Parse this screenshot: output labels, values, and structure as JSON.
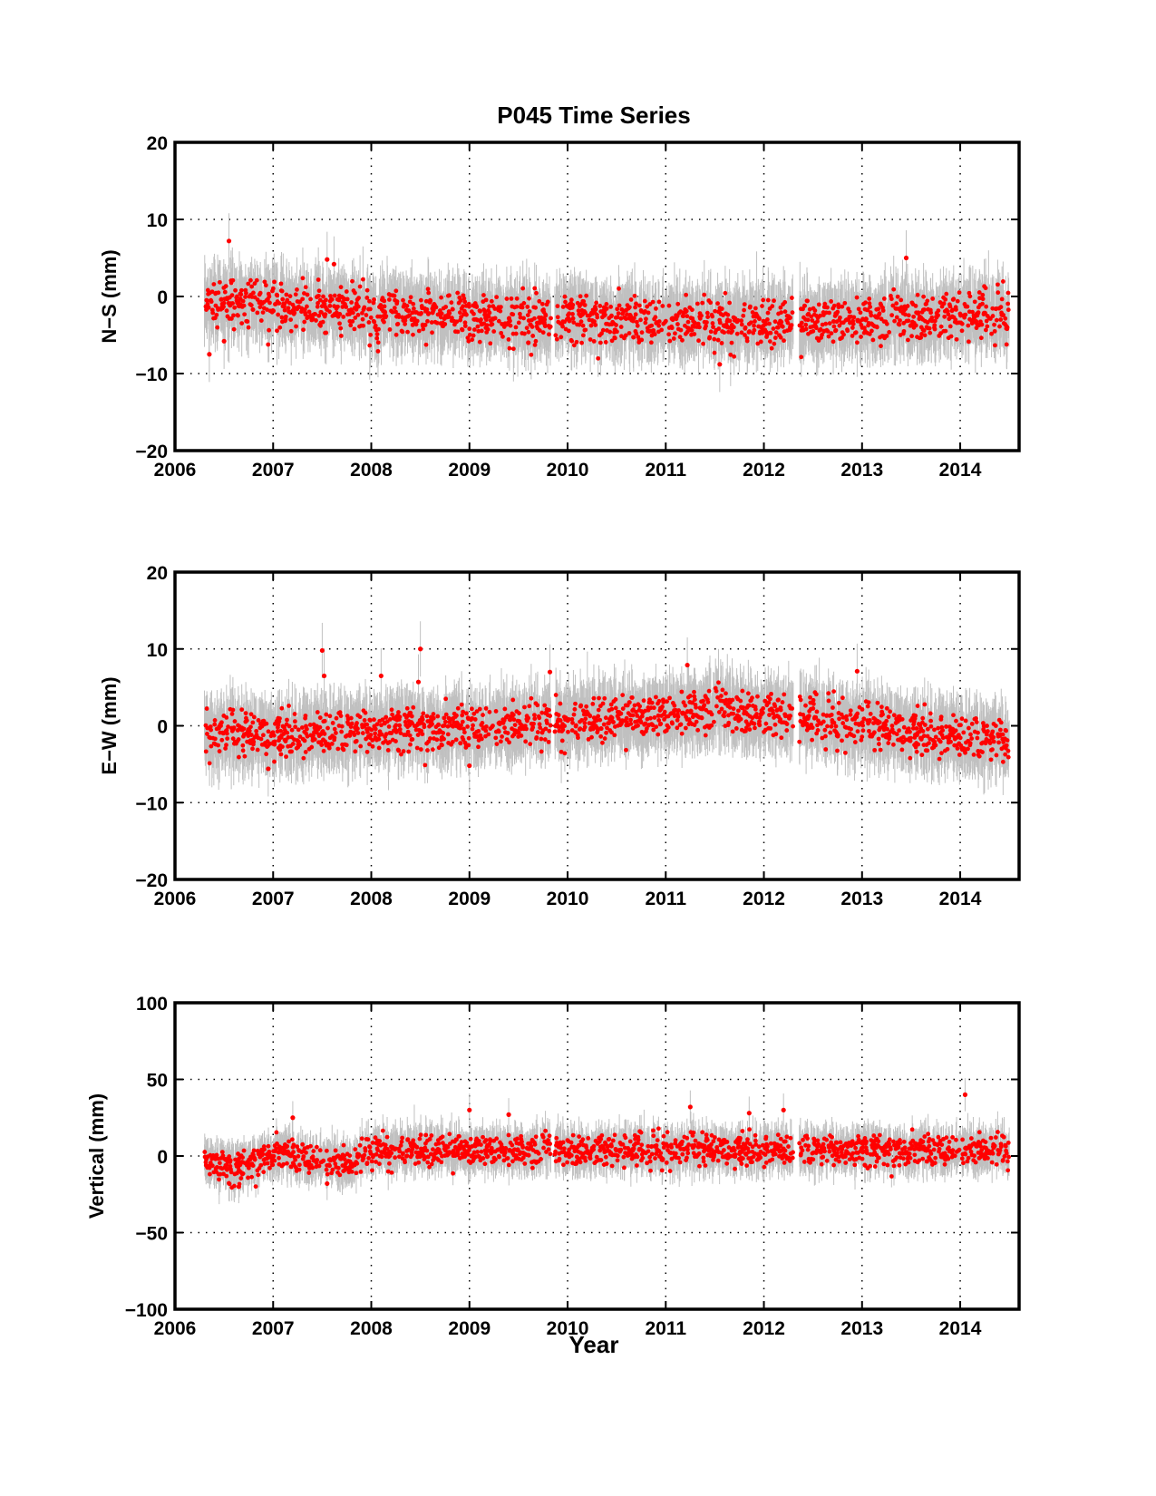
{
  "figure": {
    "title": "P045 Time Series",
    "xlabel": "Year"
  },
  "colors": {
    "point": "#ff0000",
    "error_bar": "#c0c0c0",
    "axis": "#000000",
    "grid": "#000000"
  },
  "chart_data": [
    {
      "type": "scatter",
      "ylabel": "N−S (mm)",
      "xlim": [
        2006,
        2014.6
      ],
      "ylim": [
        -20,
        20
      ],
      "xticks": [
        2006,
        2007,
        2008,
        2009,
        2010,
        2011,
        2012,
        2013,
        2014
      ],
      "yticks": [
        -20,
        -10,
        0,
        10,
        20
      ],
      "xtick_labels": [
        "2006",
        "2007",
        "2008",
        "2009",
        "2010",
        "2011",
        "2012",
        "2013",
        "2014"
      ],
      "ytick_labels": [
        "−20",
        "−10",
        "0",
        "10",
        "20"
      ],
      "grid": true,
      "data_span": [
        2006.3,
        2014.5
      ],
      "gaps": [
        [
          2009.83,
          2009.87
        ],
        [
          2012.3,
          2012.36
        ]
      ],
      "series": [
        {
          "trend": [
            [
              2006.3,
              -0.5
            ],
            [
              2007.0,
              -1.2
            ],
            [
              2008.0,
              -2.0
            ],
            [
              2009.0,
              -2.6
            ],
            [
              2010.0,
              -3.0
            ],
            [
              2011.0,
              -3.2
            ],
            [
              2012.0,
              -3.4
            ],
            [
              2013.0,
              -3.0
            ],
            [
              2014.0,
              -2.4
            ],
            [
              2014.5,
              -2.2
            ]
          ],
          "scatter_sd": 1.5,
          "error_bar": 3,
          "outliers": [
            [
              2006.55,
              7.2
            ],
            [
              2006.35,
              -7.5
            ],
            [
              2007.55,
              4.8
            ],
            [
              2007.62,
              4.2
            ],
            [
              2011.55,
              -8.8
            ],
            [
              2013.45,
              5.0
            ],
            [
              2006.5,
              -5.8
            ],
            [
              2009.6,
              -6.0
            ]
          ]
        }
      ]
    },
    {
      "type": "scatter",
      "ylabel": "E−W (mm)",
      "xlim": [
        2006,
        2014.6
      ],
      "ylim": [
        -20,
        20
      ],
      "xticks": [
        2006,
        2007,
        2008,
        2009,
        2010,
        2011,
        2012,
        2013,
        2014
      ],
      "yticks": [
        -20,
        -10,
        0,
        10,
        20
      ],
      "xtick_labels": [
        "2006",
        "2007",
        "2008",
        "2009",
        "2010",
        "2011",
        "2012",
        "2013",
        "2014"
      ],
      "ytick_labels": [
        "−20",
        "−10",
        "0",
        "10",
        "20"
      ],
      "grid": true,
      "data_span": [
        2006.3,
        2014.5
      ],
      "gaps": [
        [
          2009.83,
          2009.87
        ],
        [
          2012.3,
          2012.36
        ]
      ],
      "series": [
        {
          "trend": [
            [
              2006.3,
              -1.0
            ],
            [
              2007.0,
              -1.2
            ],
            [
              2008.0,
              -0.8
            ],
            [
              2009.0,
              -0.2
            ],
            [
              2010.0,
              0.6
            ],
            [
              2011.0,
              1.5
            ],
            [
              2011.5,
              2.2
            ],
            [
              2012.0,
              1.6
            ],
            [
              2012.5,
              1.0
            ],
            [
              2013.0,
              0.0
            ],
            [
              2014.0,
              -1.5
            ],
            [
              2014.5,
              -2.2
            ]
          ],
          "scatter_sd": 1.4,
          "error_bar": 3,
          "outliers": [
            [
              2007.5,
              9.8
            ],
            [
              2007.52,
              6.5
            ],
            [
              2008.5,
              10.0
            ],
            [
              2008.48,
              5.7
            ],
            [
              2008.1,
              6.5
            ],
            [
              2009.82,
              7.0
            ],
            [
              2011.22,
              7.9
            ],
            [
              2012.95,
              7.1
            ],
            [
              2009.0,
              -5.2
            ],
            [
              2006.95,
              -5.6
            ]
          ]
        }
      ]
    },
    {
      "type": "scatter",
      "ylabel": "Vertical (mm)",
      "xlim": [
        2006,
        2014.6
      ],
      "ylim": [
        -100,
        100
      ],
      "xticks": [
        2006,
        2007,
        2008,
        2009,
        2010,
        2011,
        2012,
        2013,
        2014
      ],
      "yticks": [
        -100,
        -50,
        0,
        50,
        100
      ],
      "xtick_labels": [
        "2006",
        "2007",
        "2008",
        "2009",
        "2010",
        "2011",
        "2012",
        "2013",
        "2014"
      ],
      "ytick_labels": [
        "−100",
        "−50",
        "0",
        "50",
        "100"
      ],
      "grid": true,
      "data_span": [
        2006.3,
        2014.5
      ],
      "gaps": [
        [
          2009.83,
          2009.87
        ],
        [
          2012.3,
          2012.36
        ]
      ],
      "series": [
        {
          "trend": [
            [
              2006.3,
              -3
            ],
            [
              2006.6,
              -10
            ],
            [
              2007.0,
              2
            ],
            [
              2007.5,
              -3
            ],
            [
              2007.8,
              -5
            ],
            [
              2008.0,
              4
            ],
            [
              2009.0,
              4
            ],
            [
              2010.0,
              4
            ],
            [
              2011.0,
              4
            ],
            [
              2012.0,
              4
            ],
            [
              2013.0,
              3
            ],
            [
              2014.0,
              4
            ],
            [
              2014.5,
              4
            ]
          ],
          "scatter_sd": 5,
          "error_bar": 9,
          "outliers": [
            [
              2007.2,
              25
            ],
            [
              2009.0,
              30
            ],
            [
              2009.4,
              27
            ],
            [
              2011.25,
              32
            ],
            [
              2011.85,
              28
            ],
            [
              2012.2,
              30
            ],
            [
              2014.05,
              40
            ],
            [
              2006.65,
              -20
            ],
            [
              2007.55,
              -18
            ]
          ]
        }
      ]
    }
  ]
}
